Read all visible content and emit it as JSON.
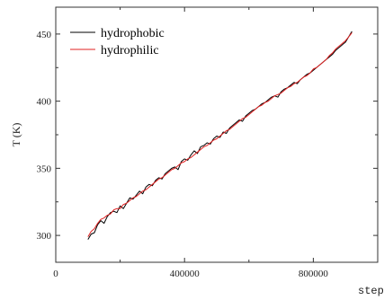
{
  "chart_data": {
    "type": "line",
    "title": "",
    "xlabel": "step",
    "ylabel": "T (K)",
    "xlim": [
      0,
      1000000
    ],
    "ylim": [
      280,
      470
    ],
    "xticks": [
      0,
      400000,
      800000
    ],
    "xtick_labels": [
      "0",
      "400000",
      "800000"
    ],
    "yticks": [
      300,
      350,
      400,
      450
    ],
    "ytick_labels": [
      "300",
      "350",
      "400",
      "450"
    ],
    "grid": false,
    "legend_position": "top-left",
    "series": [
      {
        "name": "hydrophobic",
        "color": "#000000",
        "x": [
          100000,
          110000,
          120000,
          130000,
          140000,
          150000,
          160000,
          170000,
          180000,
          190000,
          200000,
          210000,
          220000,
          230000,
          240000,
          250000,
          260000,
          270000,
          280000,
          290000,
          300000,
          310000,
          320000,
          330000,
          340000,
          350000,
          360000,
          370000,
          380000,
          390000,
          400000,
          410000,
          420000,
          430000,
          440000,
          450000,
          460000,
          470000,
          480000,
          490000,
          500000,
          510000,
          520000,
          530000,
          540000,
          550000,
          560000,
          570000,
          580000,
          590000,
          600000,
          610000,
          620000,
          630000,
          640000,
          650000,
          660000,
          670000,
          680000,
          690000,
          700000,
          710000,
          720000,
          730000,
          740000,
          750000,
          760000,
          770000,
          780000,
          790000,
          800000,
          810000,
          820000,
          830000,
          840000,
          850000,
          860000,
          870000,
          880000,
          890000,
          900000,
          910000,
          920000
        ],
        "values": [
          297,
          301,
          302,
          308,
          311,
          309,
          314,
          317,
          318,
          317,
          322,
          320,
          324,
          328,
          327,
          330,
          333,
          331,
          336,
          338,
          337,
          341,
          343,
          342,
          346,
          348,
          350,
          351,
          349,
          355,
          357,
          356,
          360,
          363,
          361,
          366,
          367,
          369,
          368,
          372,
          374,
          373,
          377,
          376,
          380,
          382,
          384,
          386,
          385,
          389,
          391,
          393,
          394,
          396,
          398,
          399,
          401,
          403,
          404,
          403,
          407,
          409,
          410,
          412,
          414,
          413,
          416,
          418,
          420,
          421,
          423,
          425,
          427,
          429,
          431,
          433,
          435,
          438,
          440,
          442,
          444,
          448,
          452
        ]
      },
      {
        "name": "hydrophilic",
        "color": "#e02020",
        "x": [
          100000,
          110000,
          120000,
          130000,
          140000,
          150000,
          160000,
          170000,
          180000,
          190000,
          200000,
          210000,
          220000,
          230000,
          240000,
          250000,
          260000,
          270000,
          280000,
          290000,
          300000,
          310000,
          320000,
          330000,
          340000,
          350000,
          360000,
          370000,
          380000,
          390000,
          400000,
          410000,
          420000,
          430000,
          440000,
          450000,
          460000,
          470000,
          480000,
          490000,
          500000,
          510000,
          520000,
          530000,
          540000,
          550000,
          560000,
          570000,
          580000,
          590000,
          600000,
          610000,
          620000,
          630000,
          640000,
          650000,
          660000,
          670000,
          680000,
          690000,
          700000,
          710000,
          720000,
          730000,
          740000,
          750000,
          760000,
          770000,
          780000,
          790000,
          800000,
          810000,
          820000,
          830000,
          840000,
          850000,
          860000,
          870000,
          880000,
          890000,
          900000,
          910000,
          920000
        ],
        "values": [
          299,
          303,
          305,
          309,
          312,
          313,
          315,
          316,
          319,
          320,
          320,
          323,
          324,
          326,
          328,
          329,
          331,
          333,
          334,
          336,
          338,
          340,
          342,
          343,
          345,
          347,
          349,
          350,
          352,
          354,
          355,
          357,
          358,
          360,
          362,
          364,
          366,
          367,
          369,
          371,
          372,
          374,
          376,
          378,
          379,
          381,
          383,
          385,
          387,
          388,
          390,
          392,
          394,
          396,
          397,
          399,
          400,
          402,
          404,
          405,
          406,
          408,
          410,
          411,
          413,
          414,
          416,
          418,
          419,
          421,
          424,
          425,
          427,
          429,
          431,
          434,
          436,
          439,
          441,
          443,
          445,
          448,
          451
        ]
      }
    ]
  }
}
